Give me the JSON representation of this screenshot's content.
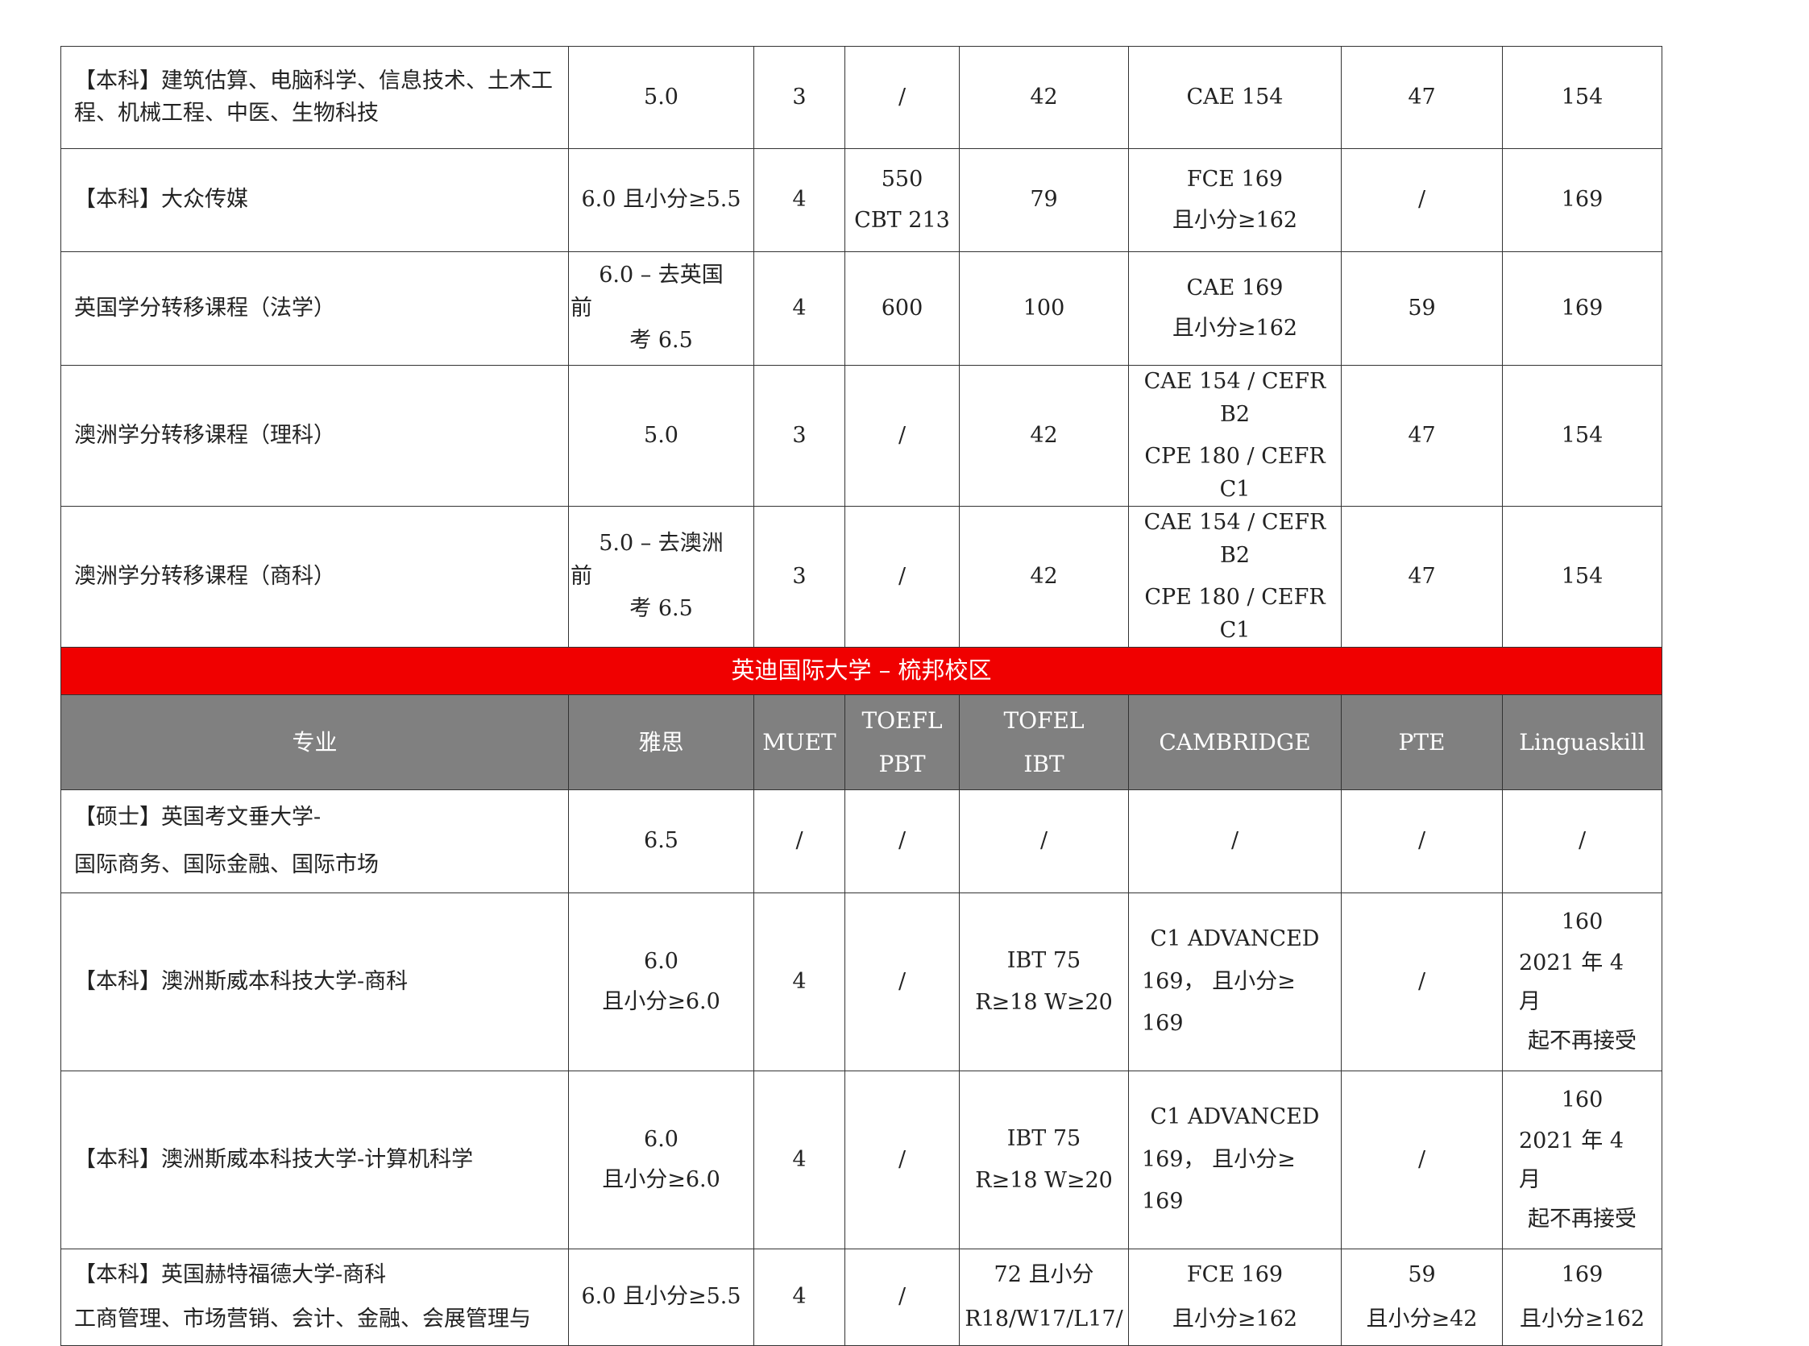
{
  "upper_rows": [
    {
      "major": [
        "【本科】建筑估算、电脑科学、信息技术、土木工",
        "程、机械工程、中医、生物科技"
      ],
      "ielts": [
        "5.0"
      ],
      "muet": "3",
      "toefl_pbt": [
        "/"
      ],
      "toefl_ibt": [
        "42"
      ],
      "cambridge": [
        "CAE 154"
      ],
      "pte": [
        "47"
      ],
      "linguaskill": [
        "154"
      ]
    },
    {
      "major": [
        "【本科】大众传媒"
      ],
      "ielts": [
        "6.0 且小分≥5.5"
      ],
      "muet": "4",
      "toefl_pbt": [
        "550",
        "CBT 213"
      ],
      "toefl_ibt": [
        "79"
      ],
      "cambridge": [
        "FCE 169",
        "且小分≥162"
      ],
      "pte": [
        "/"
      ],
      "linguaskill": [
        "169"
      ]
    },
    {
      "major": [
        "英国学分转移课程（法学）"
      ],
      "ielts": [
        "6.0 – 去英国",
        "前",
        "考 6.5"
      ],
      "muet": "4",
      "toefl_pbt": [
        "600"
      ],
      "toefl_ibt": [
        "100"
      ],
      "cambridge": [
        "CAE 169",
        "且小分≥162"
      ],
      "pte": [
        "59"
      ],
      "linguaskill": [
        "169"
      ]
    },
    {
      "major": [
        "澳洲学分转移课程（理科）"
      ],
      "ielts": [
        "5.0"
      ],
      "muet": "3",
      "toefl_pbt": [
        "/"
      ],
      "toefl_ibt": [
        "42"
      ],
      "cambridge": [
        "CAE 154 / CEFR B2",
        "CPE 180 / CEFR C1"
      ],
      "pte": [
        "47"
      ],
      "linguaskill": [
        "154"
      ]
    },
    {
      "major": [
        "澳洲学分转移课程（商科）"
      ],
      "ielts": [
        "5.0 – 去澳洲",
        "前",
        "考 6.5"
      ],
      "muet": "3",
      "toefl_pbt": [
        "/"
      ],
      "toefl_ibt": [
        "42"
      ],
      "cambridge": [
        "CAE 154 / CEFR B2",
        "CPE 180 / CEFR C1"
      ],
      "pte": [
        "47"
      ],
      "linguaskill": [
        "154"
      ]
    }
  ],
  "section_title": "英迪国际大学 – 梳邦校区",
  "headers": {
    "major": "专业",
    "ielts": "雅思",
    "muet": "MUET",
    "toefl_pbt": [
      "TOEFL",
      "PBT"
    ],
    "toefl_ibt": [
      "TOFEL",
      "IBT"
    ],
    "cambridge": "CAMBRIDGE",
    "pte": "PTE",
    "linguaskill": "Linguaskill"
  },
  "lower_rows": [
    {
      "major": [
        "【硕士】英国考文垂大学-",
        "国际商务、国际金融、国际市场"
      ],
      "ielts": [
        "6.5"
      ],
      "muet": "/",
      "toefl_pbt": [
        "/"
      ],
      "toefl_ibt": [
        "/"
      ],
      "cambridge": [
        "/"
      ],
      "pte": [
        "/"
      ],
      "linguaskill": [
        "/"
      ]
    },
    {
      "major": [
        "【本科】澳洲斯威本科技大学-商科"
      ],
      "ielts": [
        "6.0",
        "且小分≥6.0"
      ],
      "muet": "4",
      "toefl_pbt": [
        "/"
      ],
      "toefl_ibt": [
        "IBT 75",
        "R≥18 W≥20"
      ],
      "cambridge": [
        "C1 ADVANCED",
        "169， 且小分≥",
        "169"
      ],
      "pte": [
        "/"
      ],
      "linguaskill": [
        "160",
        "2021 年 4",
        "月",
        "起不再接受"
      ]
    },
    {
      "major": [
        "【本科】澳洲斯威本科技大学-计算机科学"
      ],
      "ielts": [
        "6.0",
        "且小分≥6.0"
      ],
      "muet": "4",
      "toefl_pbt": [
        "/"
      ],
      "toefl_ibt": [
        "IBT 75",
        "R≥18 W≥20"
      ],
      "cambridge": [
        "C1 ADVANCED",
        "169， 且小分≥",
        "169"
      ],
      "pte": [
        "/"
      ],
      "linguaskill": [
        "160",
        "2021 年 4",
        "月",
        "起不再接受"
      ]
    },
    {
      "major": [
        "【本科】英国赫特福德大学-商科",
        "工商管理、市场营销、会计、金融、会展管理与"
      ],
      "ielts": [
        "6.0 且小分≥5.5"
      ],
      "muet": "4",
      "toefl_pbt": [
        "/"
      ],
      "toefl_ibt": [
        "72 且小分",
        "R18/W17/L17/"
      ],
      "cambridge": [
        "FCE 169",
        "且小分≥162"
      ],
      "pte": [
        "59",
        "且小分≥42"
      ],
      "linguaskill": [
        "169",
        "且小分≥162"
      ]
    }
  ]
}
